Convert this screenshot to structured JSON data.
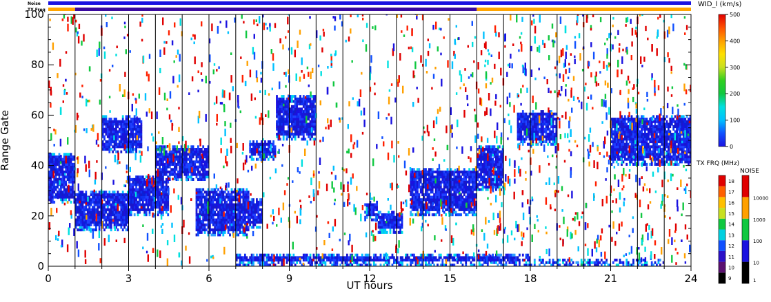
{
  "chart_data": {
    "type": "heatmap",
    "title": "",
    "xlabel": "UT hours",
    "ylabel": "Range Gate",
    "xlim": [
      0,
      24
    ],
    "ylim": [
      0,
      100
    ],
    "x_ticks": [
      "0",
      "3",
      "6",
      "9",
      "12",
      "15",
      "18",
      "21",
      "24"
    ],
    "y_ticks": [
      "0",
      "20",
      "40",
      "60",
      "80",
      "100"
    ],
    "status_bars": {
      "noise_label": "Noise",
      "txfreq_label": "TX Freq",
      "noise_color": "#1a12e0",
      "txfreq_segments": [
        {
          "from": 0,
          "to": 1,
          "color": "#ffa500"
        },
        {
          "from": 1,
          "to": 16,
          "color": "#3a0aa0"
        },
        {
          "from": 16,
          "to": 24,
          "color": "#ffa500"
        }
      ]
    },
    "echo_regions": [
      {
        "x0": 0.0,
        "x1": 1.0,
        "y0": 25,
        "y1": 45,
        "level": "low"
      },
      {
        "x0": 1.0,
        "x1": 3.0,
        "y0": 14,
        "y1": 30,
        "level": "low"
      },
      {
        "x0": 3.0,
        "x1": 4.5,
        "y0": 20,
        "y1": 36,
        "level": "low"
      },
      {
        "x0": 4.0,
        "x1": 6.0,
        "y0": 34,
        "y1": 48,
        "level": "low"
      },
      {
        "x0": 5.5,
        "x1": 7.5,
        "y0": 12,
        "y1": 31,
        "level": "low"
      },
      {
        "x0": 7.5,
        "x1": 8.0,
        "y0": 15,
        "y1": 27,
        "level": "low"
      },
      {
        "x0": 2.0,
        "x1": 3.5,
        "y0": 45,
        "y1": 60,
        "level": "low"
      },
      {
        "x0": 7.5,
        "x1": 8.5,
        "y0": 42,
        "y1": 50,
        "level": "low"
      },
      {
        "x0": 8.5,
        "x1": 10.0,
        "y0": 50,
        "y1": 68,
        "level": "low"
      },
      {
        "x0": 11.8,
        "x1": 12.3,
        "y0": 18,
        "y1": 26,
        "level": "low"
      },
      {
        "x0": 12.3,
        "x1": 13.2,
        "y0": 13,
        "y1": 22,
        "level": "low"
      },
      {
        "x0": 13.5,
        "x1": 16.0,
        "y0": 20,
        "y1": 39,
        "level": "low"
      },
      {
        "x0": 16.0,
        "x1": 17.0,
        "y0": 30,
        "y1": 48,
        "level": "low"
      },
      {
        "x0": 17.5,
        "x1": 19.0,
        "y0": 48,
        "y1": 62,
        "level": "low"
      },
      {
        "x0": 21.0,
        "x1": 24.0,
        "y0": 40,
        "y1": 60,
        "level": "low"
      },
      {
        "x0": 7.0,
        "x1": 18.0,
        "y0": 0,
        "y1": 5,
        "level": "low"
      },
      {
        "x0": 18.0,
        "x1": 23.0,
        "y0": 0,
        "y1": 3,
        "level": "low"
      }
    ],
    "legend_velocity": {
      "label": "WID_l (km/s)",
      "ticks": [
        "0",
        "100",
        "200",
        "300",
        "400",
        "500"
      ],
      "min": 0,
      "max": 500
    },
    "legend_txfreq": {
      "label": "TX FRQ (MHz)",
      "ticks": [
        "9",
        "10",
        "11",
        "12",
        "13",
        "14",
        "15",
        "16",
        "17",
        "18"
      ],
      "colors": [
        "#000000",
        "#5a1070",
        "#2b10c8",
        "#1050ff",
        "#00d0e0",
        "#10c840",
        "#c8e020",
        "#ffc000",
        "#ff6000",
        "#e00000"
      ]
    },
    "legend_noise": {
      "label": "NOISE",
      "ticks": [
        "1",
        "10",
        "100",
        "1000",
        "10000"
      ],
      "colors": [
        "#000000",
        "#1a12e0",
        "#10c840",
        "#ffa000",
        "#e00000"
      ]
    }
  }
}
